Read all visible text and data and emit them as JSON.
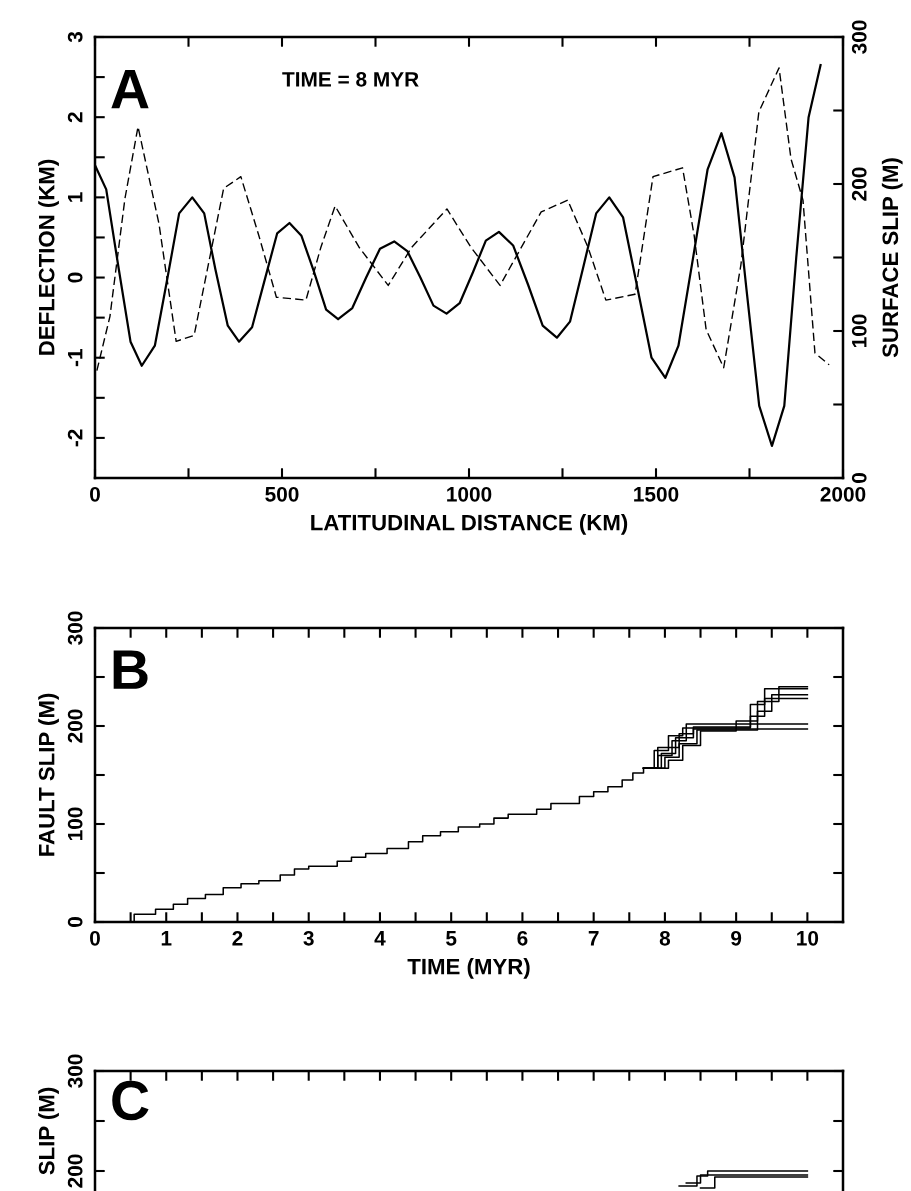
{
  "chart_data": [
    {
      "type": "line",
      "xlabel": "LATITUDINAL DISTANCE (KM)",
      "ylabel": "DEFLECTION (KM)",
      "y2label": "SURFACE SLIP (M)",
      "annotations": [
        "A",
        "TIME = 8 MYR"
      ],
      "xlim": [
        0,
        2000
      ],
      "xticks": [
        0,
        {
          "value": 250,
          "label": null
        },
        500,
        {
          "value": 750,
          "label": null
        },
        1000,
        {
          "value": 1250,
          "label": null
        },
        1500,
        {
          "value": 1750,
          "label": null
        },
        2000
      ],
      "ylim": [
        -2.5,
        3
      ],
      "yticks": [
        {
          "value": -2,
          "label": "-2"
        },
        {
          "value": -1.5,
          "label": null
        },
        {
          "value": -1,
          "label": "-1"
        },
        {
          "value": -0.5,
          "label": null
        },
        0,
        {
          "value": 0.5,
          "label": null
        },
        1,
        {
          "value": 1.5,
          "label": null
        },
        2,
        {
          "value": 2.5,
          "label": null
        },
        3
      ],
      "y2lim": [
        0,
        300
      ],
      "y2ticks": [
        0,
        {
          "value": 50,
          "label": null
        },
        100,
        {
          "value": 150,
          "label": null
        },
        200,
        {
          "value": 250,
          "label": null
        },
        300
      ],
      "series": [
        {
          "color": "#000000",
          "line_style": "solid",
          "x": [
            0,
            30,
            62,
            95,
            125,
            160,
            192,
            225,
            260,
            292,
            322,
            355,
            385,
            420,
            452,
            487,
            520,
            552,
            585,
            618,
            650,
            688,
            725,
            762,
            800,
            835,
            870,
            905,
            940,
            975,
            1010,
            1045,
            1080,
            1118,
            1158,
            1197,
            1235,
            1270,
            1305,
            1340,
            1375,
            1412,
            1450,
            1488,
            1525,
            1560,
            1600,
            1638,
            1675,
            1710,
            1742,
            1776,
            1810,
            1843,
            1875,
            1908,
            1940
          ],
          "values": [
            1.4,
            1.1,
            0.15,
            -0.8,
            -1.1,
            -0.85,
            -0.05,
            0.8,
            1.0,
            0.8,
            0.1,
            -0.6,
            -0.8,
            -0.62,
            -0.06,
            0.55,
            0.68,
            0.52,
            0.08,
            -0.4,
            -0.52,
            -0.38,
            0.0,
            0.36,
            0.45,
            0.33,
            0.0,
            -0.35,
            -0.45,
            -0.32,
            0.06,
            0.46,
            0.57,
            0.4,
            -0.09,
            -0.6,
            -0.75,
            -0.55,
            0.12,
            0.8,
            1.0,
            0.75,
            -0.12,
            -1.0,
            -1.25,
            -0.85,
            0.27,
            1.35,
            1.8,
            1.25,
            -0.15,
            -1.6,
            -2.1,
            -1.6,
            0.25,
            2.0,
            2.65
          ]
        },
        {
          "color": "#000000",
          "line_style": "dashed",
          "axis": "y2",
          "x": [
            5,
            40,
            80,
            115,
            171,
            217,
            265,
            344,
            390,
            438,
            485,
            564,
            604,
            642,
            706,
            784,
            847,
            941,
            1005,
            1083,
            1193,
            1264,
            1318,
            1366,
            1444,
            1492,
            1571,
            1602,
            1634,
            1681,
            1727,
            1775,
            1829,
            1861,
            1893,
            1925,
            1963
          ],
          "values": [
            73,
            110,
            190,
            239,
            173,
            93,
            97,
            197,
            205,
            165,
            123,
            121,
            157,
            185,
            157,
            131,
            157,
            183,
            157,
            131,
            181,
            189,
            157,
            121,
            125,
            205,
            211,
            165,
            101,
            75,
            145,
            249,
            279,
            217,
            189,
            85,
            77
          ]
        }
      ]
    },
    {
      "type": "step",
      "xlabel": "TIME (MYR)",
      "ylabel": "FAULT SLIP (M)",
      "annotations": [
        "B"
      ],
      "xlim": [
        0,
        10.5
      ],
      "xticks": [
        0,
        {
          "value": 0.5,
          "label": null
        },
        1,
        {
          "value": 1.5,
          "label": null
        },
        2,
        {
          "value": 2.5,
          "label": null
        },
        3,
        {
          "value": 3.5,
          "label": null
        },
        4,
        {
          "value": 4.5,
          "label": null
        },
        5,
        {
          "value": 5.5,
          "label": null
        },
        6,
        {
          "value": 6.5,
          "label": null
        },
        7,
        {
          "value": 7.5,
          "label": null
        },
        8,
        {
          "value": 8.5,
          "label": null
        },
        9,
        {
          "value": 9.5,
          "label": null
        },
        10
      ],
      "ylim": [
        0,
        300
      ],
      "yticks": [
        0,
        {
          "value": 50,
          "label": null
        },
        100,
        {
          "value": 150,
          "label": null
        },
        200,
        {
          "value": 250,
          "label": null
        },
        300
      ],
      "series": [
        {
          "color": "#000000",
          "x": [
            0.3,
            0.55,
            0.85,
            1.1,
            1.3,
            1.55,
            1.8,
            2.05,
            2.3,
            2.6,
            2.8,
            3.0,
            3.4,
            3.6,
            3.8,
            4.1,
            4.4,
            4.6,
            4.85,
            5.1,
            5.4,
            5.6,
            5.8,
            6.2,
            6.4,
            6.8,
            7.0,
            7.2,
            7.4,
            7.55,
            7.7
          ],
          "values": [
            0,
            8,
            13,
            18,
            24,
            28,
            35,
            39,
            42,
            48,
            54,
            57,
            62,
            66,
            70,
            75,
            82,
            88,
            92,
            97,
            100,
            106,
            110,
            115,
            121,
            128,
            133,
            138,
            145,
            152,
            157
          ]
        },
        {
          "color": "#000000",
          "x": [
            7.7,
            7.9,
            8.1,
            8.3,
            10.0
          ],
          "values": [
            157,
            170,
            185,
            202,
            202
          ]
        },
        {
          "color": "#000000",
          "x": [
            7.7,
            7.95,
            8.15,
            8.4,
            10.0
          ],
          "values": [
            157,
            172,
            188,
            197,
            197
          ]
        },
        {
          "color": "#000000",
          "x": [
            7.7,
            7.85,
            8.05,
            8.25,
            9.0,
            9.2,
            9.4,
            10.0
          ],
          "values": [
            157,
            175,
            190,
            198,
            198,
            210,
            228,
            228
          ]
        },
        {
          "color": "#000000",
          "x": [
            7.7,
            8.0,
            8.2,
            8.45,
            9.1,
            9.3,
            9.5,
            10.0
          ],
          "values": [
            157,
            168,
            182,
            196,
            196,
            215,
            232,
            232
          ]
        },
        {
          "color": "#000000",
          "x": [
            7.7,
            7.9,
            8.2,
            8.4,
            8.9,
            9.2,
            9.4,
            10.0
          ],
          "values": [
            157,
            178,
            192,
            199,
            199,
            222,
            238,
            238
          ]
        },
        {
          "color": "#000000",
          "x": [
            7.7,
            8.05,
            8.25,
            8.5,
            9.0,
            9.3,
            9.6,
            10.0
          ],
          "values": [
            157,
            165,
            180,
            195,
            205,
            225,
            240,
            240
          ]
        }
      ]
    },
    {
      "type": "step",
      "ylabel": "SLIP (M)",
      "annotations": [
        "C"
      ],
      "tick_labels": "y",
      "xlim": [
        0,
        10.5
      ],
      "xticks": [
        0,
        {
          "value": 0.5,
          "label": null
        },
        1,
        {
          "value": 1.5,
          "label": null
        },
        2,
        {
          "value": 2.5,
          "label": null
        },
        3,
        {
          "value": 3.5,
          "label": null
        },
        4,
        {
          "value": 4.5,
          "label": null
        },
        5,
        {
          "value": 5.5,
          "label": null
        },
        6,
        {
          "value": 6.5,
          "label": null
        },
        7,
        {
          "value": 7.5,
          "label": null
        },
        8,
        {
          "value": 8.5,
          "label": null
        },
        9,
        {
          "value": 9.5,
          "label": null
        },
        10
      ],
      "ylim": [
        180,
        300
      ],
      "yticks": [
        200,
        {
          "value": 250,
          "label": null
        },
        300
      ],
      "series": [
        {
          "color": "#000000",
          "x": [
            8.2,
            8.45,
            8.6,
            10.0
          ],
          "values": [
            185,
            195,
            200,
            200
          ]
        },
        {
          "color": "#000000",
          "x": [
            8.3,
            8.5,
            10.0
          ],
          "values": [
            188,
            196,
            196
          ]
        },
        {
          "color": "#000000",
          "x": [
            8.5,
            8.7,
            10.0
          ],
          "values": [
            183,
            194,
            194
          ]
        }
      ]
    }
  ]
}
